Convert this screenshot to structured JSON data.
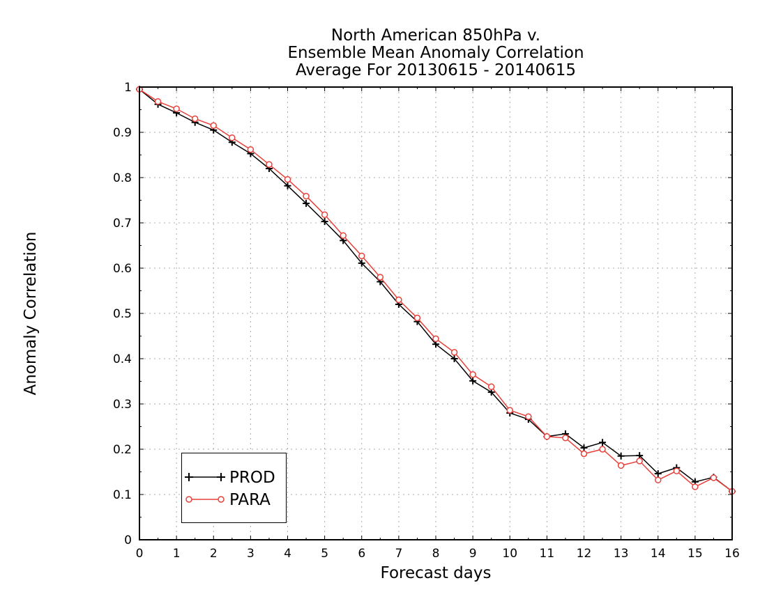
{
  "chart_data": {
    "type": "line",
    "title": [
      "North American 850hPa v.",
      "Ensemble Mean Anomaly Correlation",
      "Average For 20130615 - 20140615"
    ],
    "xlabel": "Forecast days",
    "ylabel": "Anomaly Correlation",
    "xlim": [
      0,
      16
    ],
    "ylim": [
      0,
      1
    ],
    "x_ticks": [
      0,
      1,
      2,
      3,
      4,
      5,
      6,
      7,
      8,
      9,
      10,
      11,
      12,
      13,
      14,
      15,
      16
    ],
    "y_ticks": [
      0,
      0.1,
      0.2,
      0.3,
      0.4,
      0.5,
      0.6,
      0.7,
      0.8,
      0.9,
      1
    ],
    "y_tick_labels": [
      "0",
      "0.1",
      "0.2",
      "0.3",
      "0.4",
      "0.5",
      "0.6",
      "0.7",
      "0.8",
      "0.9",
      "1"
    ],
    "grid": true,
    "legend_position": "bottom-left",
    "x": [
      0,
      0.5,
      1,
      1.5,
      2,
      2.5,
      3,
      3.5,
      4,
      4.5,
      5,
      5.5,
      6,
      6.5,
      7,
      7.5,
      8,
      8.5,
      9,
      9.5,
      10,
      10.5,
      11,
      11.5,
      12,
      12.5,
      13,
      13.5,
      14,
      14.5,
      15,
      15.5,
      16
    ],
    "series": [
      {
        "name": "PROD",
        "color": "#000000",
        "marker": "plus",
        "values": [
          0.995,
          0.962,
          0.943,
          0.922,
          0.905,
          0.878,
          0.853,
          0.82,
          0.782,
          0.743,
          0.703,
          0.661,
          0.611,
          0.57,
          0.52,
          0.482,
          0.432,
          0.4,
          0.351,
          0.326,
          0.28,
          0.266,
          0.228,
          0.234,
          0.203,
          0.215,
          0.185,
          0.186,
          0.146,
          0.159,
          0.128,
          0.138,
          0.107
        ]
      },
      {
        "name": "PARA",
        "color": "#e8403a",
        "marker": "circle",
        "values": [
          0.995,
          0.968,
          0.952,
          0.93,
          0.915,
          0.888,
          0.862,
          0.829,
          0.796,
          0.759,
          0.718,
          0.672,
          0.627,
          0.58,
          0.53,
          0.49,
          0.444,
          0.414,
          0.365,
          0.338,
          0.286,
          0.272,
          0.228,
          0.225,
          0.19,
          0.2,
          0.164,
          0.174,
          0.132,
          0.152,
          0.117,
          0.137,
          0.107
        ]
      }
    ]
  }
}
